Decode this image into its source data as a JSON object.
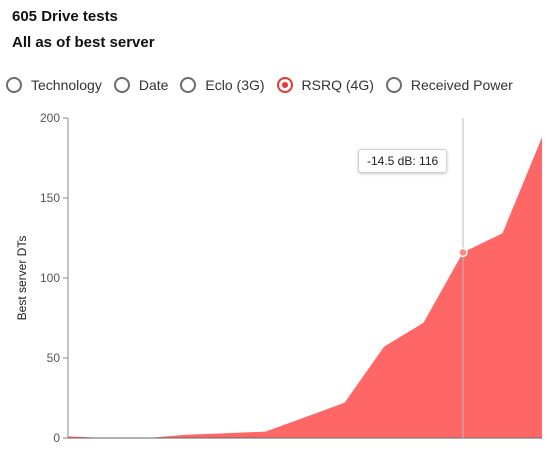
{
  "header": {
    "title": "605 Drive tests",
    "subtitle": "All as of best server"
  },
  "radios": [
    {
      "label": "Technology",
      "selected": false
    },
    {
      "label": "Date",
      "selected": false
    },
    {
      "label": "Eclo (3G)",
      "selected": false
    },
    {
      "label": "RSRQ (4G)",
      "selected": true
    },
    {
      "label": "Received Power",
      "selected": false
    }
  ],
  "colors": {
    "area": "#ff6666",
    "accent": "#e53935"
  },
  "tooltip": {
    "text": "-14.5 dB: 116"
  },
  "chart_data": {
    "type": "area",
    "ylabel": "Best server DTs",
    "xlabel": "",
    "ylim": [
      0,
      200
    ],
    "yticks": [
      0,
      50,
      100,
      150,
      200
    ],
    "series": [
      {
        "values": [
          1,
          0,
          0,
          2,
          3,
          4,
          13,
          22,
          57,
          72,
          116,
          128,
          188
        ]
      }
    ],
    "highlight": {
      "index": 10,
      "value": 116,
      "label": "-14.5 dB"
    }
  }
}
